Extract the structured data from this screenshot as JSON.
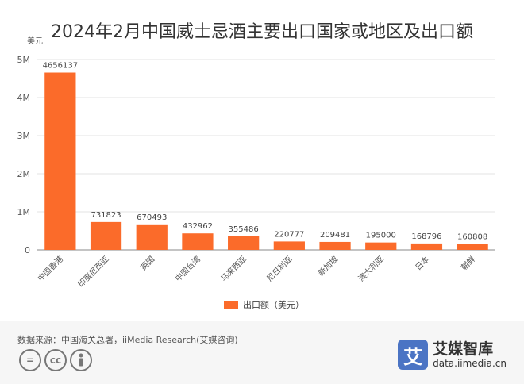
{
  "title": "2024年2月中国威士忌酒主要出口国家或地区及出口额",
  "source": "数据来源：中国海关总署，iiMedia Research(艾媒咨询)",
  "brand": {
    "logo_char": "艾",
    "name": "艾媒智库",
    "url": "data.iimedia.cn"
  },
  "license_icons": [
    "equal-icon",
    "cc-icon",
    "person-icon"
  ],
  "colors": {
    "bar": "#fb6b2a",
    "grid": "#e3e3e3",
    "axis": "#888888"
  },
  "chart_data": {
    "type": "bar",
    "title": "2024年2月中国威士忌酒主要出口国家或地区及出口额",
    "unit_label": "美元",
    "categories": [
      "中国香港",
      "印度尼西亚",
      "英国",
      "中国台湾",
      "马来西亚",
      "尼日利亚",
      "新加坡",
      "澳大利亚",
      "日本",
      "朝鲜"
    ],
    "series": [
      {
        "name": "出口额（美元）",
        "values": [
          4656137,
          731823,
          670493,
          432962,
          355486,
          220777,
          209481,
          195000,
          168796,
          160808
        ]
      }
    ],
    "ylim": [
      0,
      5000000
    ],
    "yticks": [
      0,
      1000000,
      2000000,
      3000000,
      4000000,
      5000000
    ],
    "ytick_labels": [
      "0",
      "1M",
      "2M",
      "3M",
      "4M",
      "5M"
    ],
    "grid": true,
    "legend": "bottom-center"
  }
}
